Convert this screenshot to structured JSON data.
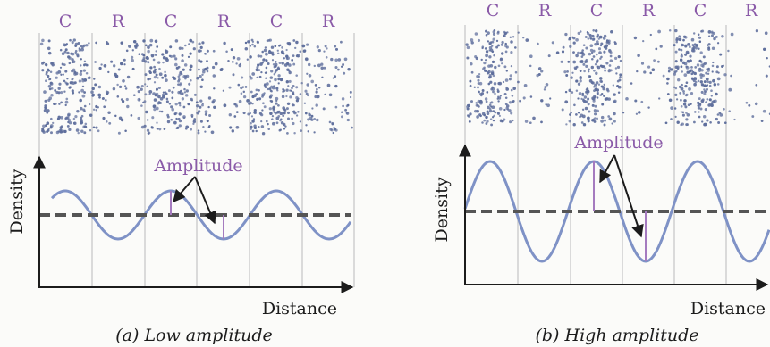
{
  "colors": {
    "zone_label": "#8a5aa8",
    "particles": "#5e6e9c",
    "wave": "#7f92c6",
    "equilibrium": "#555555",
    "axes": "#1c1c1c",
    "dividers": "#d0d0d0",
    "amplitude_marker": "#a57bbf"
  },
  "panels": [
    {
      "zone_labels": [
        "C",
        "R",
        "C",
        "R",
        "C",
        "R"
      ],
      "amplitude_label": "Amplitude",
      "y_axis_label": "Density",
      "x_axis_label": "Distance",
      "caption": "(a) Low amplitude"
    },
    {
      "zone_labels": [
        "C",
        "R",
        "C",
        "R",
        "C",
        "R"
      ],
      "amplitude_label": "Amplitude",
      "y_axis_label": "Density",
      "x_axis_label": "Distance",
      "caption": "(b) High amplitude"
    }
  ]
}
